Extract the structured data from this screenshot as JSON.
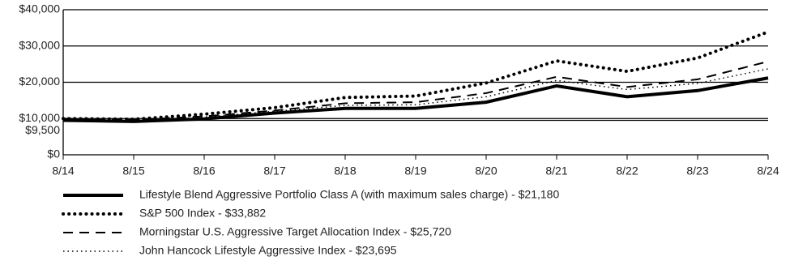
{
  "chart_data": {
    "type": "line",
    "categories": [
      "8/14",
      "8/15",
      "8/16",
      "8/17",
      "8/18",
      "8/19",
      "8/20",
      "8/21",
      "8/22",
      "8/23",
      "8/24"
    ],
    "ylim": [
      0,
      40000
    ],
    "yticks": [
      {
        "value": 0,
        "label": "$0"
      },
      {
        "value": 9500,
        "label": "$9,500"
      },
      {
        "value": 10000,
        "label": "$10,000"
      },
      {
        "value": 20000,
        "label": "$20,000"
      },
      {
        "value": 30000,
        "label": "$30,000"
      },
      {
        "value": 40000,
        "label": "$40,000"
      }
    ],
    "grid": true,
    "series": [
      {
        "name": "Lifestyle Blend Aggressive Portfolio Class A (with maximum sales charge)  - $21,180",
        "color": "#000000",
        "values": [
          9500,
          9200,
          9900,
          11500,
          12800,
          12800,
          14500,
          19000,
          16000,
          17700,
          21180
        ]
      },
      {
        "name": "S&P 500 Index - $33,882",
        "color": "#000000",
        "values": [
          10000,
          9800,
          11200,
          13000,
          15800,
          16200,
          19800,
          25900,
          23000,
          26700,
          33882
        ]
      },
      {
        "name": "Morningstar U.S. Aggressive Target Allocation Index - $25,720",
        "color": "#000000",
        "values": [
          10000,
          9600,
          10600,
          12200,
          14200,
          14500,
          17000,
          21500,
          18700,
          20800,
          25720
        ]
      },
      {
        "name": "John Hancock Lifestyle Aggressive Index - $23,695",
        "color": "#000000",
        "values": [
          10000,
          9500,
          10400,
          12000,
          13600,
          13800,
          16000,
          20500,
          18000,
          19700,
          23695
        ]
      }
    ]
  }
}
